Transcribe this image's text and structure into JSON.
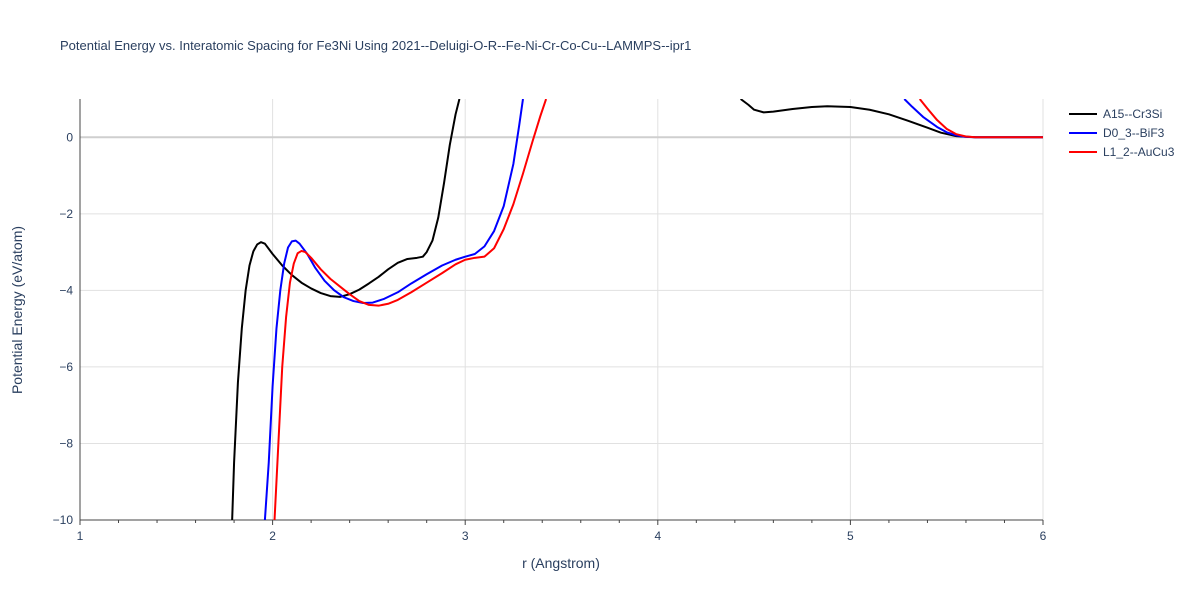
{
  "chart_data": {
    "type": "line",
    "title": "Potential Energy vs. Interatomic Spacing for Fe3Ni Using 2021--Deluigi-O-R--Fe-Ni-Cr-Co-Cu--LAMMPS--ipr1",
    "xlabel": "r (Angstrom)",
    "ylabel": "Potential Energy (eV/atom)",
    "xlim": [
      1,
      6
    ],
    "ylim": [
      -10,
      1
    ],
    "x_ticks": [
      1,
      2,
      3,
      4,
      5,
      6
    ],
    "x_tick_labels": [
      "1",
      "2",
      "3",
      "4",
      "5",
      "6"
    ],
    "y_ticks": [
      -10,
      -8,
      -6,
      -4,
      -2,
      0
    ],
    "y_tick_labels": [
      "−10",
      "−8",
      "−6",
      "−4",
      "−2",
      "0"
    ],
    "grid": true,
    "legend_position": "top-right",
    "series": [
      {
        "name": "A15--Cr3Si",
        "color": "#000000",
        "points": [
          [
            1.79,
            -10.0
          ],
          [
            1.8,
            -8.5
          ],
          [
            1.82,
            -6.4
          ],
          [
            1.84,
            -5.0
          ],
          [
            1.86,
            -4.0
          ],
          [
            1.88,
            -3.35
          ],
          [
            1.9,
            -2.98
          ],
          [
            1.92,
            -2.8
          ],
          [
            1.94,
            -2.74
          ],
          [
            1.96,
            -2.78
          ],
          [
            2.0,
            -3.05
          ],
          [
            2.05,
            -3.35
          ],
          [
            2.1,
            -3.6
          ],
          [
            2.15,
            -3.8
          ],
          [
            2.2,
            -3.95
          ],
          [
            2.25,
            -4.07
          ],
          [
            2.3,
            -4.15
          ],
          [
            2.35,
            -4.17
          ],
          [
            2.4,
            -4.1
          ],
          [
            2.45,
            -3.98
          ],
          [
            2.5,
            -3.82
          ],
          [
            2.55,
            -3.65
          ],
          [
            2.6,
            -3.45
          ],
          [
            2.65,
            -3.28
          ],
          [
            2.7,
            -3.18
          ],
          [
            2.75,
            -3.15
          ],
          [
            2.78,
            -3.12
          ],
          [
            2.8,
            -3.0
          ],
          [
            2.83,
            -2.7
          ],
          [
            2.86,
            -2.1
          ],
          [
            2.89,
            -1.2
          ],
          [
            2.92,
            -0.2
          ],
          [
            2.95,
            0.6
          ],
          [
            2.97,
            1.0
          ]
        ]
      },
      {
        "name": "A15--Cr3Si (r > 4.4)",
        "legend": false,
        "color": "#000000",
        "points": [
          [
            4.43,
            1.0
          ],
          [
            4.47,
            0.85
          ],
          [
            4.5,
            0.72
          ],
          [
            4.55,
            0.65
          ],
          [
            4.6,
            0.67
          ],
          [
            4.7,
            0.74
          ],
          [
            4.8,
            0.79
          ],
          [
            4.88,
            0.81
          ],
          [
            5.0,
            0.79
          ],
          [
            5.1,
            0.72
          ],
          [
            5.2,
            0.6
          ],
          [
            5.3,
            0.43
          ],
          [
            5.4,
            0.25
          ],
          [
            5.47,
            0.12
          ],
          [
            5.55,
            0.03
          ],
          [
            5.65,
            0.0
          ],
          [
            6.0,
            0.0
          ]
        ]
      },
      {
        "name": "D0_3--BiF3",
        "color": "#0000ff",
        "points": [
          [
            1.96,
            -10.0
          ],
          [
            1.98,
            -8.5
          ],
          [
            2.0,
            -6.5
          ],
          [
            2.02,
            -5.0
          ],
          [
            2.04,
            -4.0
          ],
          [
            2.06,
            -3.3
          ],
          [
            2.08,
            -2.88
          ],
          [
            2.1,
            -2.72
          ],
          [
            2.12,
            -2.7
          ],
          [
            2.14,
            -2.78
          ],
          [
            2.18,
            -3.05
          ],
          [
            2.22,
            -3.4
          ],
          [
            2.27,
            -3.75
          ],
          [
            2.32,
            -4.0
          ],
          [
            2.37,
            -4.18
          ],
          [
            2.42,
            -4.28
          ],
          [
            2.47,
            -4.33
          ],
          [
            2.52,
            -4.32
          ],
          [
            2.58,
            -4.22
          ],
          [
            2.65,
            -4.05
          ],
          [
            2.72,
            -3.82
          ],
          [
            2.8,
            -3.58
          ],
          [
            2.88,
            -3.35
          ],
          [
            2.95,
            -3.2
          ],
          [
            3.0,
            -3.12
          ],
          [
            3.05,
            -3.05
          ],
          [
            3.1,
            -2.85
          ],
          [
            3.15,
            -2.45
          ],
          [
            3.2,
            -1.8
          ],
          [
            3.25,
            -0.7
          ],
          [
            3.28,
            0.3
          ],
          [
            3.3,
            1.0
          ]
        ]
      },
      {
        "name": "D0_3--BiF3 (r > 5.2)",
        "legend": false,
        "color": "#0000ff",
        "points": [
          [
            5.28,
            1.0
          ],
          [
            5.32,
            0.8
          ],
          [
            5.38,
            0.52
          ],
          [
            5.45,
            0.27
          ],
          [
            5.5,
            0.13
          ],
          [
            5.55,
            0.05
          ],
          [
            5.6,
            0.01
          ],
          [
            5.65,
            0.0
          ],
          [
            6.0,
            0.0
          ]
        ]
      },
      {
        "name": "L1_2--AuCu3",
        "color": "#ff0000",
        "points": [
          [
            2.01,
            -10.0
          ],
          [
            2.03,
            -8.0
          ],
          [
            2.05,
            -6.0
          ],
          [
            2.07,
            -4.7
          ],
          [
            2.09,
            -3.8
          ],
          [
            2.11,
            -3.3
          ],
          [
            2.13,
            -3.03
          ],
          [
            2.15,
            -2.97
          ],
          [
            2.17,
            -3.0
          ],
          [
            2.2,
            -3.15
          ],
          [
            2.25,
            -3.45
          ],
          [
            2.3,
            -3.7
          ],
          [
            2.35,
            -3.9
          ],
          [
            2.4,
            -4.1
          ],
          [
            2.45,
            -4.28
          ],
          [
            2.5,
            -4.38
          ],
          [
            2.55,
            -4.4
          ],
          [
            2.6,
            -4.35
          ],
          [
            2.65,
            -4.25
          ],
          [
            2.72,
            -4.05
          ],
          [
            2.8,
            -3.8
          ],
          [
            2.88,
            -3.55
          ],
          [
            2.95,
            -3.32
          ],
          [
            3.0,
            -3.2
          ],
          [
            3.05,
            -3.15
          ],
          [
            3.1,
            -3.12
          ],
          [
            3.15,
            -2.9
          ],
          [
            3.2,
            -2.4
          ],
          [
            3.25,
            -1.75
          ],
          [
            3.3,
            -0.95
          ],
          [
            3.35,
            -0.1
          ],
          [
            3.39,
            0.55
          ],
          [
            3.42,
            1.0
          ]
        ]
      },
      {
        "name": "L1_2--AuCu3 (r > 5.3)",
        "legend": false,
        "color": "#ff0000",
        "points": [
          [
            5.36,
            1.0
          ],
          [
            5.4,
            0.75
          ],
          [
            5.45,
            0.45
          ],
          [
            5.5,
            0.22
          ],
          [
            5.55,
            0.08
          ],
          [
            5.6,
            0.02
          ],
          [
            5.65,
            0.0
          ],
          [
            6.0,
            0.0
          ]
        ]
      }
    ]
  }
}
